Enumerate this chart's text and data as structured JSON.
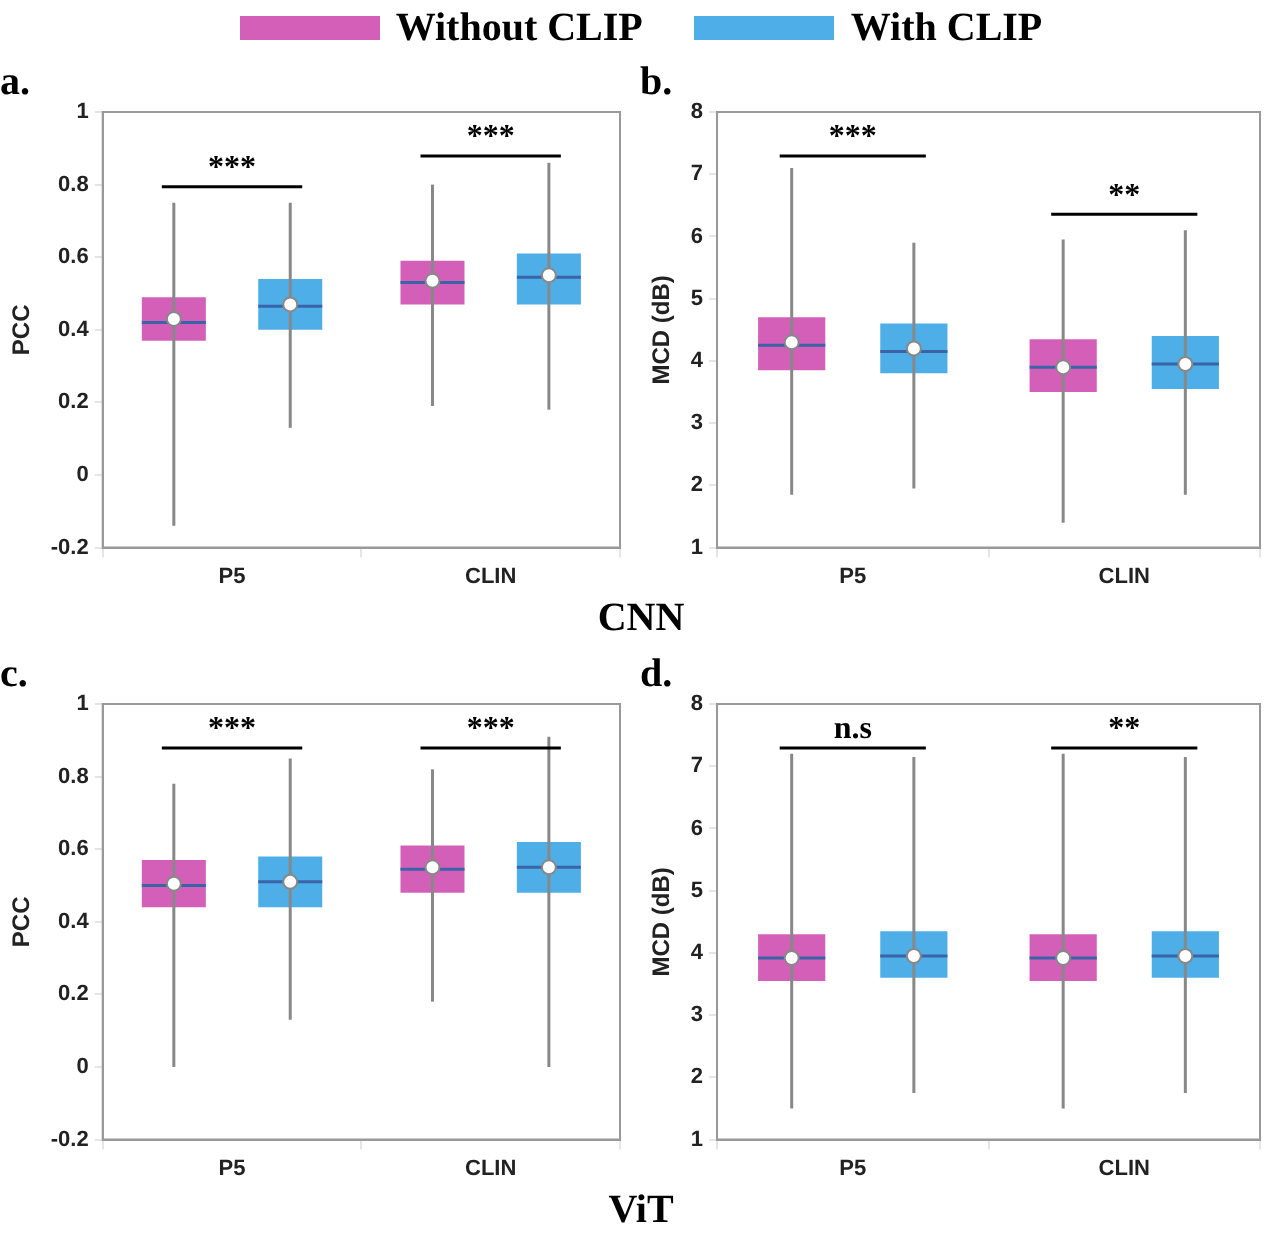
{
  "chart_data": [
    {
      "type": "box",
      "title": "a.",
      "ylabel": "PCC",
      "xlabel": "CNN",
      "categories": [
        "P5",
        "CLIN"
      ],
      "ylim": [
        -0.2,
        1
      ],
      "yticks": [
        -0.2,
        0,
        0.2,
        0.4,
        0.6,
        0.8,
        1
      ],
      "grid": false,
      "legend": "top",
      "annotations": [
        "***",
        "***"
      ],
      "series": [
        {
          "name": "Without CLIP",
          "color": "#d45fb8",
          "boxes": [
            {
              "low": -0.14,
              "q1": 0.37,
              "median": 0.42,
              "q3": 0.49,
              "high": 0.75,
              "mean": 0.43
            },
            {
              "low": 0.19,
              "q1": 0.47,
              "median": 0.53,
              "q3": 0.59,
              "high": 0.8,
              "mean": 0.535
            }
          ]
        },
        {
          "name": "With CLIP",
          "color": "#4daee8",
          "boxes": [
            {
              "low": 0.13,
              "q1": 0.4,
              "median": 0.465,
              "q3": 0.54,
              "high": 0.75,
              "mean": 0.47
            },
            {
              "low": 0.18,
              "q1": 0.47,
              "median": 0.545,
              "q3": 0.61,
              "high": 0.86,
              "mean": 0.55
            }
          ]
        }
      ]
    },
    {
      "type": "box",
      "title": "b.",
      "ylabel": "MCD (dB)",
      "categories": [
        "P5",
        "CLIN"
      ],
      "ylim": [
        1,
        8
      ],
      "yticks": [
        1,
        2,
        3,
        4,
        5,
        6,
        7,
        8
      ],
      "grid": false,
      "annotations": [
        "***",
        "**"
      ],
      "series": [
        {
          "color": "#d45fb8",
          "boxes": [
            {
              "low": 1.85,
              "q1": 3.85,
              "median": 4.25,
              "q3": 4.7,
              "high": 7.1,
              "mean": 4.3
            },
            {
              "low": 1.4,
              "q1": 3.5,
              "median": 3.9,
              "q3": 4.35,
              "high": 5.95,
              "mean": 3.9
            }
          ]
        },
        {
          "color": "#4daee8",
          "boxes": [
            {
              "low": 1.95,
              "q1": 3.8,
              "median": 4.15,
              "q3": 4.6,
              "high": 5.9,
              "mean": 4.2
            },
            {
              "low": 1.85,
              "q1": 3.55,
              "median": 3.95,
              "q3": 4.4,
              "high": 6.1,
              "mean": 3.95
            }
          ]
        }
      ]
    },
    {
      "type": "box",
      "title": "c.",
      "ylabel": "PCC",
      "xlabel": "ViT",
      "categories": [
        "P5",
        "CLIN"
      ],
      "ylim": [
        -0.2,
        1
      ],
      "yticks": [
        -0.2,
        0,
        0.2,
        0.4,
        0.6,
        0.8,
        1
      ],
      "grid": false,
      "annotations": [
        "***",
        "***"
      ],
      "series": [
        {
          "color": "#d45fb8",
          "boxes": [
            {
              "low": 0.0,
              "q1": 0.44,
              "median": 0.5,
              "q3": 0.57,
              "high": 0.78,
              "mean": 0.505
            },
            {
              "low": 0.18,
              "q1": 0.48,
              "median": 0.545,
              "q3": 0.61,
              "high": 0.82,
              "mean": 0.55
            }
          ]
        },
        {
          "color": "#4daee8",
          "boxes": [
            {
              "low": 0.13,
              "q1": 0.44,
              "median": 0.51,
              "q3": 0.58,
              "high": 0.85,
              "mean": 0.51
            },
            {
              "low": 0.0,
              "q1": 0.48,
              "median": 0.55,
              "q3": 0.62,
              "high": 0.91,
              "mean": 0.55
            }
          ]
        }
      ]
    },
    {
      "type": "box",
      "title": "d.",
      "ylabel": "MCD (dB)",
      "categories": [
        "P5",
        "CLIN"
      ],
      "ylim": [
        1,
        8
      ],
      "yticks": [
        1,
        2,
        3,
        4,
        5,
        6,
        7,
        8
      ],
      "grid": false,
      "annotations": [
        "n.s",
        "**"
      ],
      "series": [
        {
          "color": "#d45fb8",
          "boxes": [
            {
              "low": 1.5,
              "q1": 3.55,
              "median": 3.92,
              "q3": 4.3,
              "high": 7.2,
              "mean": 3.92
            },
            {
              "low": 1.5,
              "q1": 3.55,
              "median": 3.92,
              "q3": 4.3,
              "high": 7.2,
              "mean": 3.92
            }
          ]
        },
        {
          "color": "#4daee8",
          "boxes": [
            {
              "low": 1.75,
              "q1": 3.6,
              "median": 3.95,
              "q3": 4.35,
              "high": 7.15,
              "mean": 3.95
            },
            {
              "low": 1.75,
              "q1": 3.6,
              "median": 3.95,
              "q3": 4.35,
              "high": 7.15,
              "mean": 3.95
            }
          ]
        }
      ]
    }
  ]
}
